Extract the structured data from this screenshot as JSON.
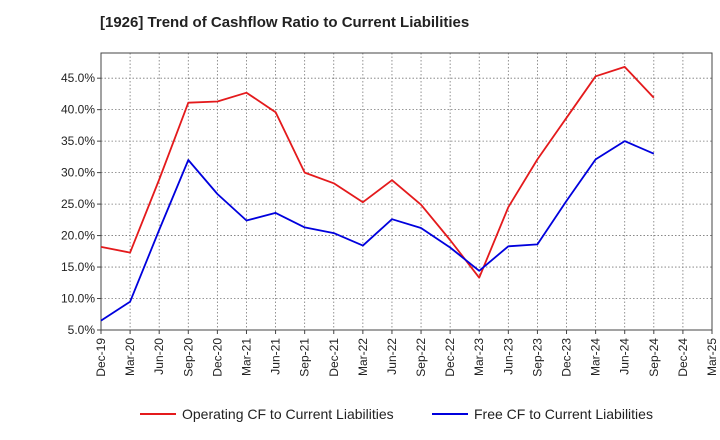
{
  "chart_data": {
    "type": "line",
    "title": "[1926]  Trend of Cashflow Ratio to Current Liabilities",
    "xlabel": "",
    "ylabel": "",
    "categories": [
      "Dec-19",
      "Mar-20",
      "Jun-20",
      "Sep-20",
      "Dec-20",
      "Mar-21",
      "Jun-21",
      "Sep-21",
      "Dec-21",
      "Mar-22",
      "Jun-22",
      "Sep-22",
      "Dec-22",
      "Mar-23",
      "Jun-23",
      "Sep-23",
      "Dec-23",
      "Mar-24",
      "Jun-24",
      "Sep-24",
      "Dec-24",
      "Mar-25"
    ],
    "ylim": [
      5.0,
      49.0
    ],
    "yticks": [
      5.0,
      10.0,
      15.0,
      20.0,
      25.0,
      30.0,
      35.0,
      40.0,
      45.0
    ],
    "ytick_format": "percent_1dp",
    "grid": true,
    "legend_position": "bottom",
    "series": [
      {
        "name": "Operating CF to Current Liabilities",
        "color": "#e41a1c",
        "values": [
          18.2,
          17.3,
          28.9,
          41.1,
          41.3,
          42.7,
          39.6,
          30.0,
          28.3,
          25.3,
          28.8,
          24.9,
          19.3,
          13.3,
          24.5,
          32.1,
          38.7,
          45.3,
          46.8,
          41.9,
          null,
          null
        ]
      },
      {
        "name": "Free CF to Current Liabilities",
        "color": "#0000dd",
        "values": [
          6.5,
          9.5,
          20.9,
          32.0,
          26.6,
          22.4,
          23.6,
          21.3,
          20.4,
          18.4,
          22.6,
          21.2,
          18.1,
          14.4,
          18.3,
          18.6,
          25.5,
          32.1,
          35.0,
          33.0,
          null,
          null
        ]
      }
    ]
  }
}
